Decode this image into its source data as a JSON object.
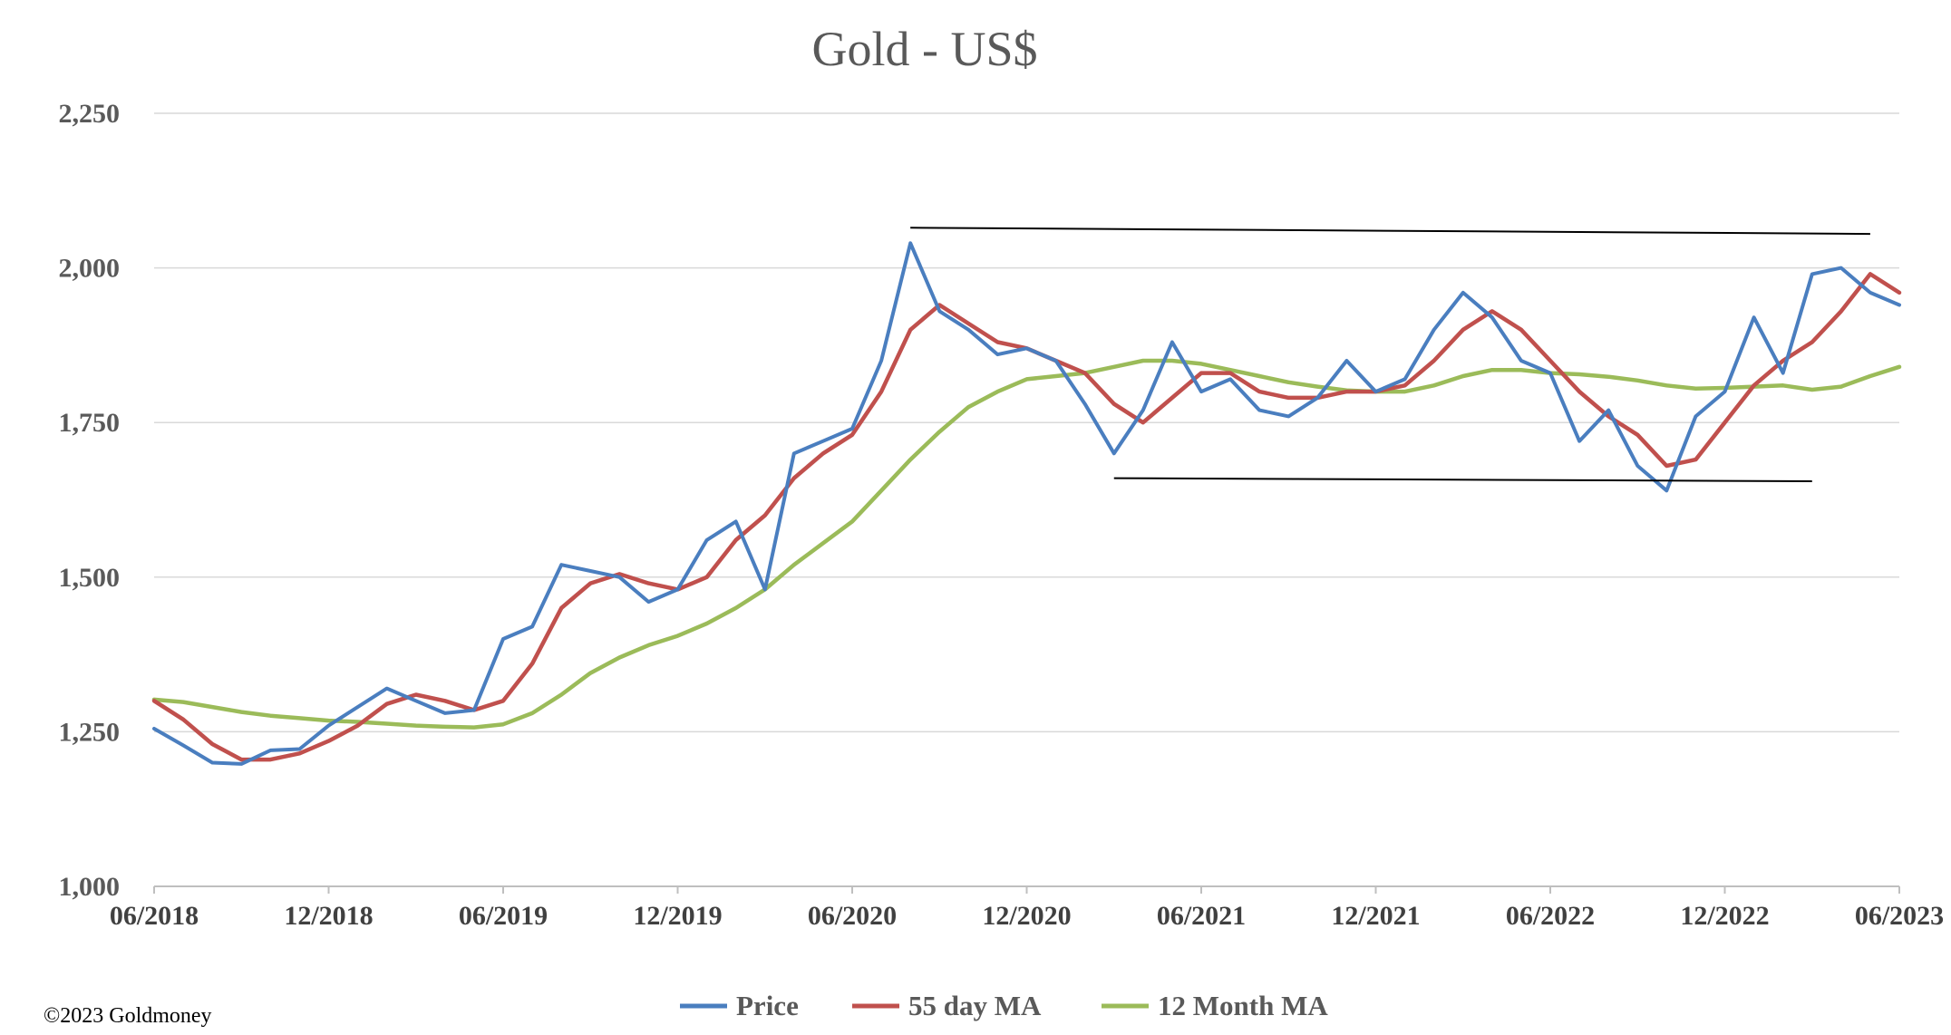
{
  "copyright": "©2023 Goldmoney",
  "chart_data": {
    "type": "line",
    "title": "Gold - US$",
    "xlabel": "",
    "ylabel": "",
    "ylim": [
      1000,
      2250
    ],
    "xlim": [
      "2018-06",
      "2023-06"
    ],
    "y_ticks": [
      1000,
      1250,
      1500,
      1750,
      2000,
      2250
    ],
    "y_tick_labels": [
      "1,000",
      "1,250",
      "1,500",
      "1,750",
      "2,000",
      "2,250"
    ],
    "x_tick_labels": [
      "06/2018",
      "12/2018",
      "06/2019",
      "12/2019",
      "06/2020",
      "12/2020",
      "06/2021",
      "12/2021",
      "06/2022",
      "12/2022",
      "06/2023"
    ],
    "grid": "horizontal",
    "legend_position": "bottom",
    "series": [
      {
        "name": "Price",
        "color": "#4a7ebf",
        "x": [
          "2018-06",
          "2018-07",
          "2018-08",
          "2018-09",
          "2018-10",
          "2018-11",
          "2018-12",
          "2019-01",
          "2019-02",
          "2019-03",
          "2019-04",
          "2019-05",
          "2019-06",
          "2019-07",
          "2019-08",
          "2019-09",
          "2019-10",
          "2019-11",
          "2019-12",
          "2020-01",
          "2020-02",
          "2020-03",
          "2020-04",
          "2020-05",
          "2020-06",
          "2020-07",
          "2020-08",
          "2020-09",
          "2020-10",
          "2020-11",
          "2020-12",
          "2021-01",
          "2021-02",
          "2021-03",
          "2021-04",
          "2021-05",
          "2021-06",
          "2021-07",
          "2021-08",
          "2021-09",
          "2021-10",
          "2021-11",
          "2021-12",
          "2022-01",
          "2022-02",
          "2022-03",
          "2022-04",
          "2022-05",
          "2022-06",
          "2022-07",
          "2022-08",
          "2022-09",
          "2022-10",
          "2022-11",
          "2022-12",
          "2023-01",
          "2023-02",
          "2023-03",
          "2023-04",
          "2023-05",
          "2023-06"
        ],
        "values": [
          1255,
          1228,
          1200,
          1198,
          1220,
          1222,
          1260,
          1290,
          1320,
          1300,
          1280,
          1285,
          1400,
          1420,
          1520,
          1510,
          1500,
          1460,
          1480,
          1560,
          1590,
          1480,
          1700,
          1720,
          1740,
          1850,
          2040,
          1930,
          1900,
          1860,
          1870,
          1850,
          1780,
          1700,
          1770,
          1880,
          1800,
          1820,
          1770,
          1760,
          1790,
          1850,
          1800,
          1820,
          1900,
          1960,
          1920,
          1850,
          1830,
          1720,
          1770,
          1680,
          1640,
          1760,
          1800,
          1920,
          1830,
          1990,
          2000,
          1960,
          1940
        ]
      },
      {
        "name": "55 day MA",
        "color": "#c0504d",
        "x": [
          "2018-06",
          "2018-07",
          "2018-08",
          "2018-09",
          "2018-10",
          "2018-11",
          "2018-12",
          "2019-01",
          "2019-02",
          "2019-03",
          "2019-04",
          "2019-05",
          "2019-06",
          "2019-07",
          "2019-08",
          "2019-09",
          "2019-10",
          "2019-11",
          "2019-12",
          "2020-01",
          "2020-02",
          "2020-03",
          "2020-04",
          "2020-05",
          "2020-06",
          "2020-07",
          "2020-08",
          "2020-09",
          "2020-10",
          "2020-11",
          "2020-12",
          "2021-01",
          "2021-02",
          "2021-03",
          "2021-04",
          "2021-05",
          "2021-06",
          "2021-07",
          "2021-08",
          "2021-09",
          "2021-10",
          "2021-11",
          "2021-12",
          "2022-01",
          "2022-02",
          "2022-03",
          "2022-04",
          "2022-05",
          "2022-06",
          "2022-07",
          "2022-08",
          "2022-09",
          "2022-10",
          "2022-11",
          "2022-12",
          "2023-01",
          "2023-02",
          "2023-03",
          "2023-04",
          "2023-05",
          "2023-06"
        ],
        "values": [
          1300,
          1270,
          1230,
          1205,
          1205,
          1215,
          1235,
          1260,
          1295,
          1310,
          1300,
          1285,
          1300,
          1360,
          1450,
          1490,
          1505,
          1490,
          1480,
          1500,
          1560,
          1600,
          1660,
          1700,
          1730,
          1800,
          1900,
          1940,
          1910,
          1880,
          1870,
          1850,
          1830,
          1780,
          1750,
          1790,
          1830,
          1830,
          1800,
          1790,
          1790,
          1800,
          1800,
          1810,
          1850,
          1900,
          1930,
          1900,
          1850,
          1800,
          1760,
          1730,
          1680,
          1690,
          1750,
          1810,
          1850,
          1880,
          1930,
          1990,
          1960
        ]
      },
      {
        "name": "12 Month MA",
        "color": "#9bbb59",
        "x": [
          "2018-06",
          "2018-07",
          "2018-08",
          "2018-09",
          "2018-10",
          "2018-11",
          "2018-12",
          "2019-01",
          "2019-02",
          "2019-03",
          "2019-04",
          "2019-05",
          "2019-06",
          "2019-07",
          "2019-08",
          "2019-09",
          "2019-10",
          "2019-11",
          "2019-12",
          "2020-01",
          "2020-02",
          "2020-03",
          "2020-04",
          "2020-05",
          "2020-06",
          "2020-07",
          "2020-08",
          "2020-09",
          "2020-10",
          "2020-11",
          "2020-12",
          "2021-01",
          "2021-02",
          "2021-03",
          "2021-04",
          "2021-05",
          "2021-06",
          "2021-07",
          "2021-08",
          "2021-09",
          "2021-10",
          "2021-11",
          "2021-12",
          "2022-01",
          "2022-02",
          "2022-03",
          "2022-04",
          "2022-05",
          "2022-06",
          "2022-07",
          "2022-08",
          "2022-09",
          "2022-10",
          "2022-11",
          "2022-12",
          "2023-01",
          "2023-02",
          "2023-03",
          "2023-04",
          "2023-05",
          "2023-06"
        ],
        "values": [
          1302,
          1298,
          1290,
          1282,
          1276,
          1272,
          1268,
          1266,
          1263,
          1260,
          1258,
          1257,
          1262,
          1280,
          1310,
          1345,
          1370,
          1390,
          1405,
          1425,
          1450,
          1480,
          1520,
          1555,
          1590,
          1640,
          1690,
          1735,
          1775,
          1800,
          1820,
          1825,
          1830,
          1840,
          1850,
          1850,
          1845,
          1835,
          1825,
          1815,
          1808,
          1802,
          1800,
          1800,
          1810,
          1825,
          1835,
          1835,
          1830,
          1828,
          1824,
          1818,
          1810,
          1805,
          1806,
          1808,
          1810,
          1803,
          1808,
          1825,
          1840
        ]
      }
    ],
    "annotations": [
      {
        "type": "trendline",
        "from": [
          "2020-08",
          2065
        ],
        "to": [
          "2023-05",
          2055
        ]
      },
      {
        "type": "trendline",
        "from": [
          "2021-03",
          1660
        ],
        "to": [
          "2023-03",
          1655
        ]
      }
    ]
  }
}
